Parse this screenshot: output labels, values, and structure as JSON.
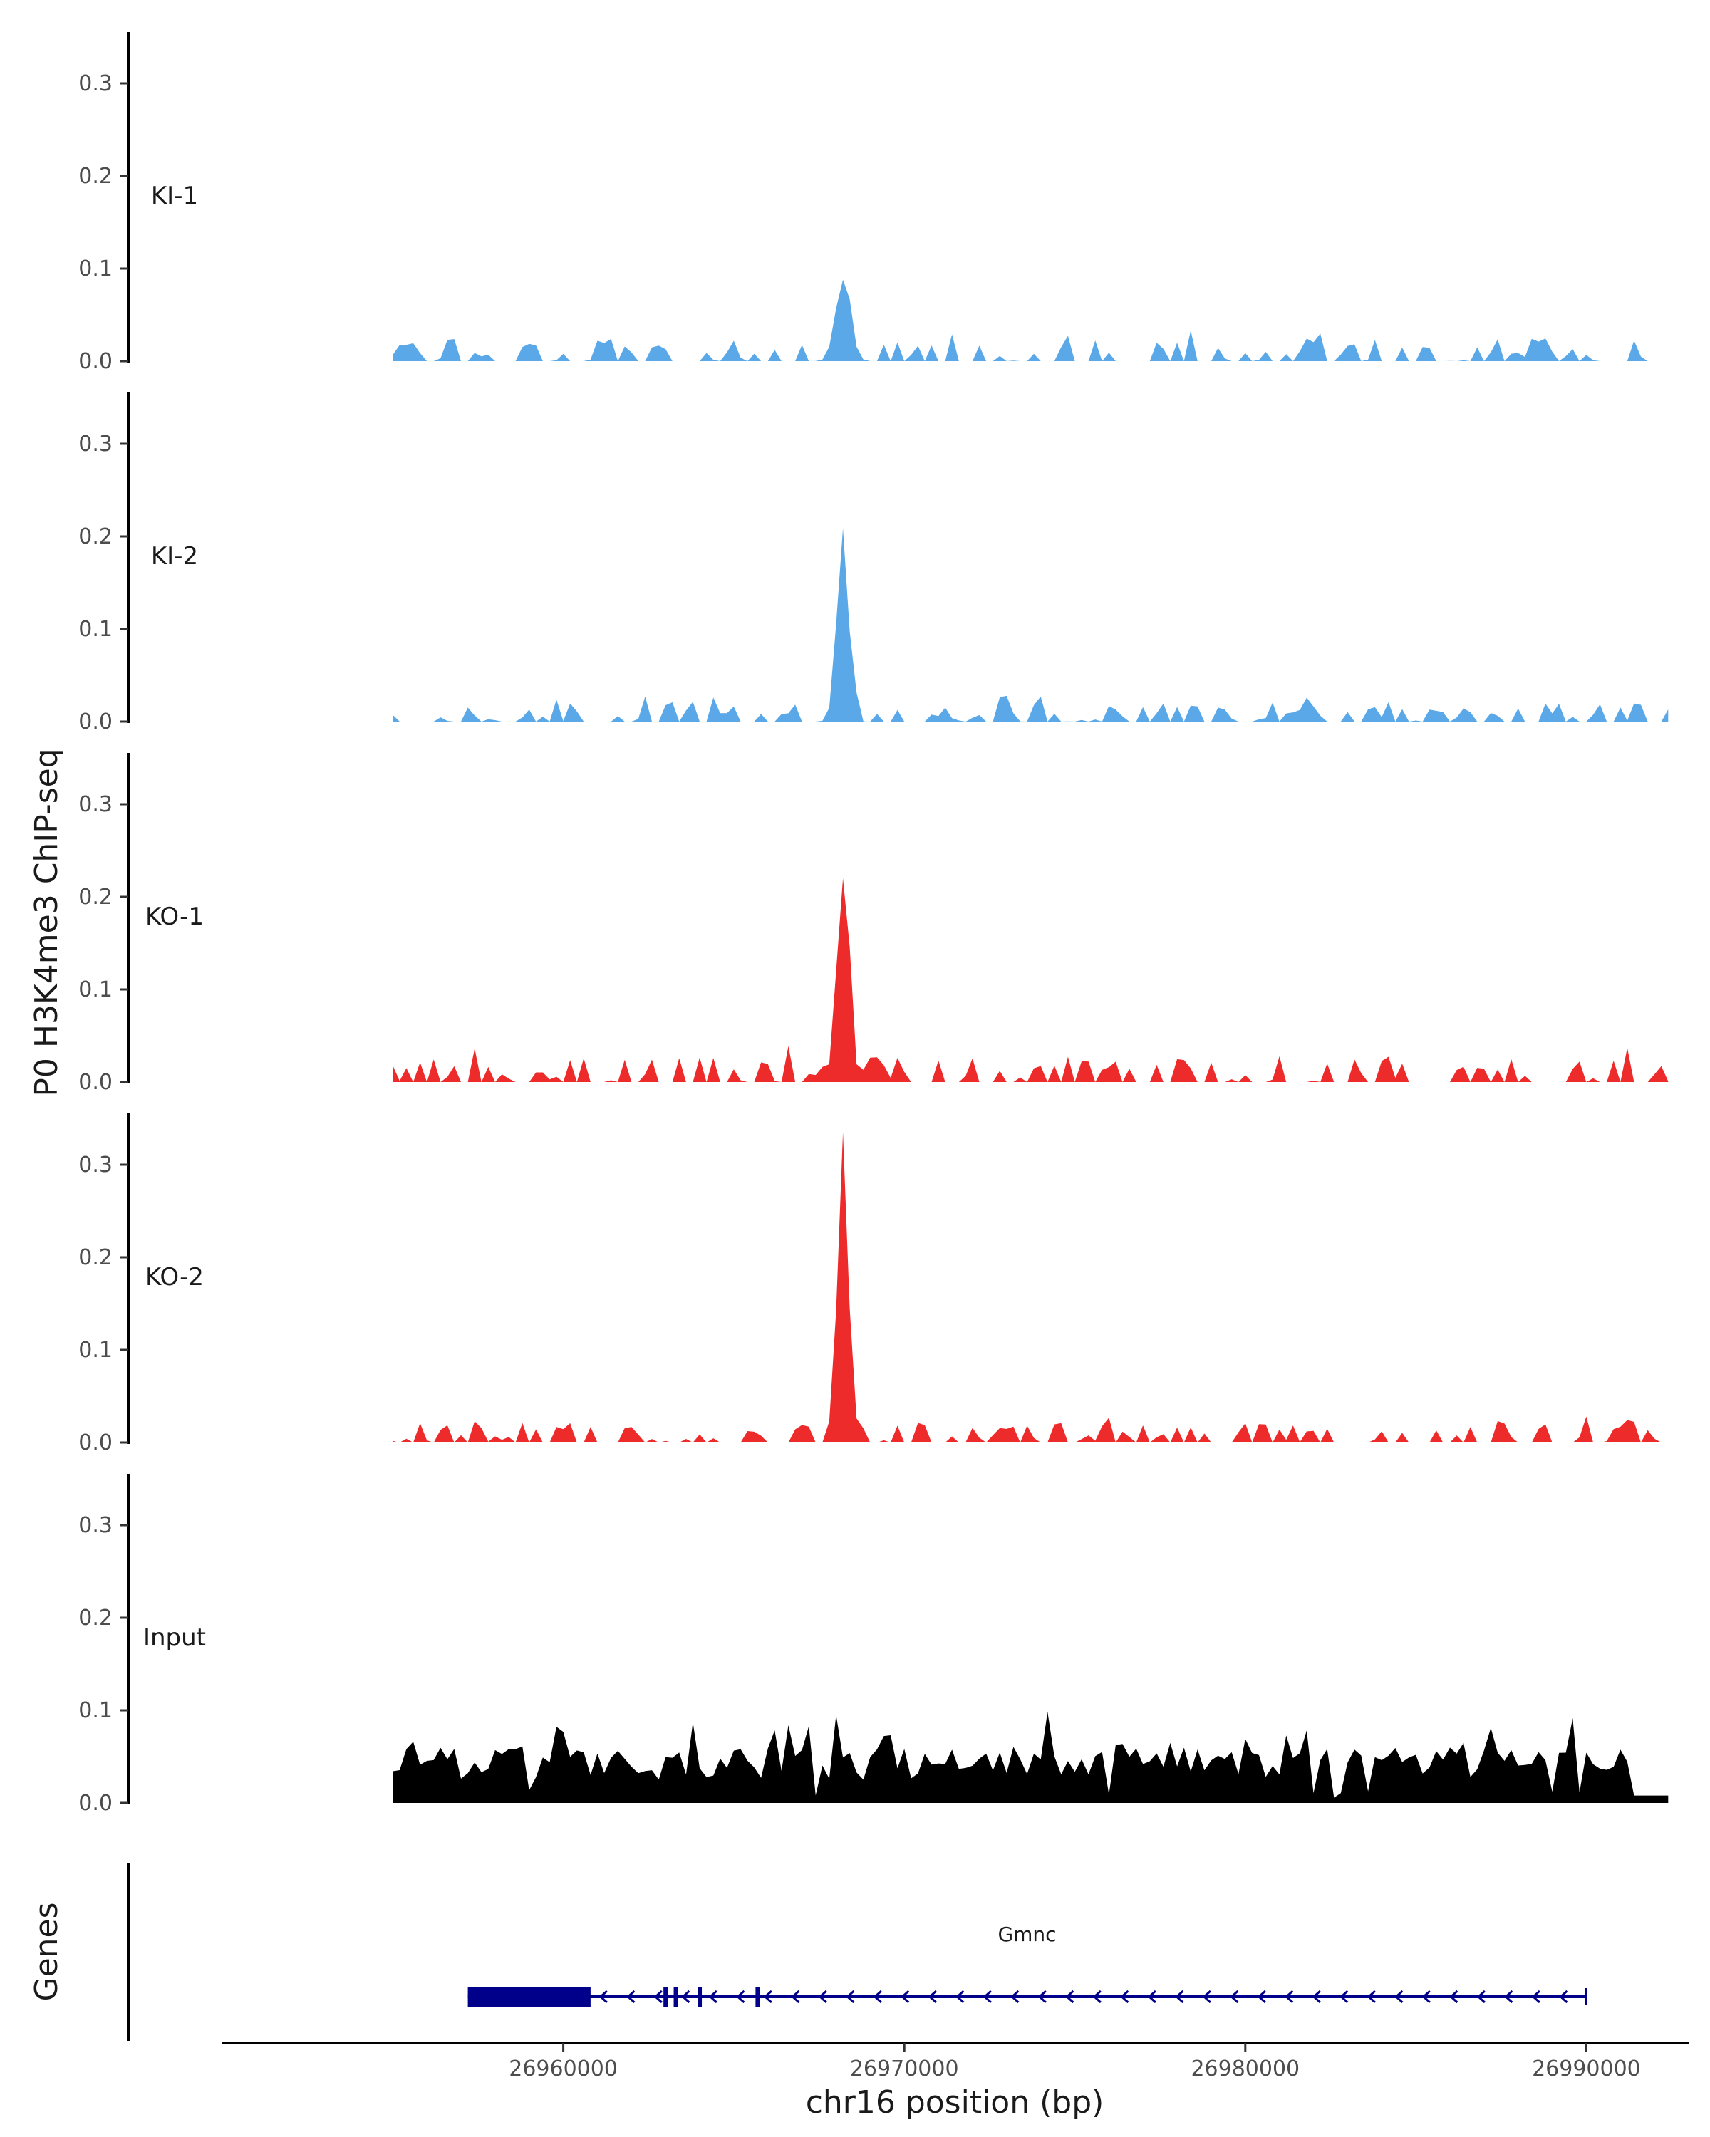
{
  "chart_data": {
    "type": "area",
    "ylabel": "P0 H3K4me3 ChIP-seq",
    "xlabel": "chr16 position (bp)",
    "genes_label": "Genes",
    "xlim": [
      26950000,
      26993000
    ],
    "ylim": [
      0,
      0.35
    ],
    "y_ticks": [
      0.0,
      0.1,
      0.2,
      0.3
    ],
    "y_tick_labels": [
      "0.0",
      "0.1",
      "0.2",
      "0.3"
    ],
    "x_ticks": [
      26960000,
      26970000,
      26980000,
      26990000
    ],
    "x_tick_labels": [
      "26960000",
      "26970000",
      "26980000",
      "26990000"
    ],
    "x_start": 26955000,
    "bin_size": 200,
    "peak_center": 26968200,
    "tracks": [
      {
        "name": "KI-1",
        "color": "#5aa8e8",
        "peak_height": 0.088,
        "peak_width": 450,
        "bg_max": 0.035,
        "seed": 11
      },
      {
        "name": "KI-2",
        "color": "#5aa8e8",
        "peak_height": 0.192,
        "peak_width": 330,
        "bg_max": 0.028,
        "seed": 23
      },
      {
        "name": "KO-1",
        "color": "#ee2b2b",
        "peak_height": 0.22,
        "peak_width": 380,
        "bg_max": 0.04,
        "seed": 37
      },
      {
        "name": "KO-2",
        "color": "#ee2b2b",
        "peak_height": 0.335,
        "peak_width": 320,
        "bg_max": 0.03,
        "seed": 53
      },
      {
        "name": "Input",
        "color": "#000000",
        "peak_height": 0.0,
        "peak_width": 0,
        "bg_max": 0.09,
        "seed": 71
      }
    ],
    "gene": {
      "name": "Gmnc",
      "color": "#00008b",
      "strand": "-",
      "start": 26957200,
      "end": 26990000,
      "thick_start": 26957200,
      "thick_end": 26960800,
      "exon_marks": [
        26963000,
        26963300,
        26964000,
        26965700
      ]
    }
  }
}
